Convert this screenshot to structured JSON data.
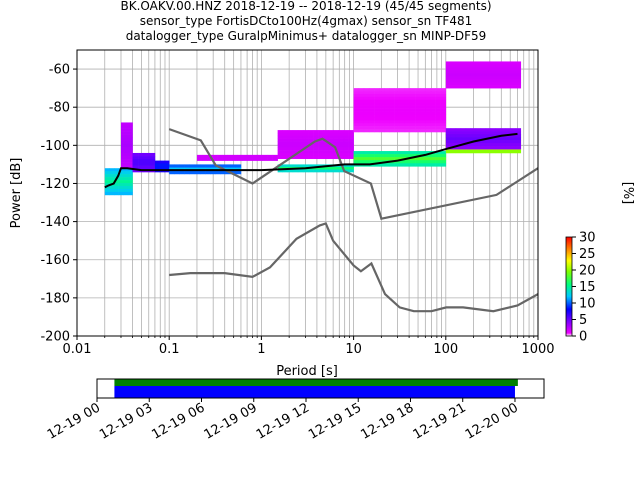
{
  "title_lines": [
    "BK.OAKV.00.HNZ   2018-12-19 -- 2018-12-19  (45/45 segments)",
    "sensor_type FortisDCto100Hz(4gmax) sensor_sn TF481",
    "datalogger_type GuralpMinimus+ datalogger_sn MINP-DF59"
  ],
  "chart_data": [
    {
      "type": "heatmap",
      "subtype": "probabilistic power spectral density",
      "xlabel": "Period [s]",
      "ylabel": "Power [dB]",
      "xscale": "log",
      "xlim": [
        0.01,
        1000
      ],
      "ylim": [
        -200,
        -50
      ],
      "grid": true,
      "x_tick_labels": [
        "0.01",
        "0.1",
        "1",
        "10",
        "100",
        "1000"
      ],
      "y_tick_labels": [
        "-200",
        "-180",
        "-160",
        "-140",
        "-120",
        "-100",
        "-80",
        "-60"
      ],
      "mode_curve": {
        "color": "#000000",
        "x": [
          0.02,
          0.022,
          0.025,
          0.028,
          0.03,
          0.035,
          0.05,
          0.1,
          0.3,
          1,
          3,
          8,
          15,
          30,
          60,
          100,
          200,
          400,
          600
        ],
        "y": [
          -122,
          -121,
          -120,
          -116,
          -112,
          -112,
          -113,
          -113,
          -113,
          -113,
          -112,
          -110,
          -110,
          -108,
          -105,
          -102,
          -98,
          -95,
          -94
        ]
      },
      "noise_models": [
        {
          "color": "#666666",
          "x": [
            0.1,
            0.17,
            0.4,
            0.8,
            1.24,
            2.4,
            4.3,
            5,
            6,
            10,
            12,
            15.6,
            21.9,
            31.6,
            45,
            70,
            101,
            154,
            328,
            600,
            1000
          ],
          "y": [
            -168,
            -167,
            -167,
            -169,
            -164,
            -149,
            -142,
            -141,
            -150,
            -163,
            -166,
            -162,
            -178,
            -185,
            -187,
            -187,
            -185,
            -185,
            -187,
            -184,
            -178
          ]
        },
        {
          "color": "#666666",
          "x": [
            0.1,
            0.22,
            0.32,
            0.8,
            3.8,
            4.6,
            6.3,
            7.9,
            15.4,
            20,
            354.8,
            1000
          ],
          "y": [
            -91.5,
            -97.4,
            -110.5,
            -120,
            -98,
            -96.5,
            -101,
            -113.5,
            -120,
            -138.5,
            -126,
            -112
          ]
        }
      ],
      "density": [
        {
          "x": [
            0.02,
            0.04
          ],
          "y": [
            -126,
            -112
          ],
          "level": 15
        },
        {
          "x": [
            0.03,
            0.04
          ],
          "y": [
            -112,
            -88
          ],
          "level": 3
        },
        {
          "x": [
            0.04,
            0.07
          ],
          "y": [
            -114,
            -104
          ],
          "level": 6
        },
        {
          "x": [
            0.07,
            0.1
          ],
          "y": [
            -114,
            -108
          ],
          "level": 9
        },
        {
          "x": [
            0.1,
            0.6
          ],
          "y": [
            -115,
            -110
          ],
          "level": 12
        },
        {
          "x": [
            0.2,
            1.5
          ],
          "y": [
            -108,
            -105
          ],
          "level": 2
        },
        {
          "x": [
            1.5,
            10
          ],
          "y": [
            -114,
            -110
          ],
          "level": 16
        },
        {
          "x": [
            1.5,
            10
          ],
          "y": [
            -107,
            -92
          ],
          "level": 2
        },
        {
          "x": [
            10,
            100
          ],
          "y": [
            -111,
            -103
          ],
          "level": 18
        },
        {
          "x": [
            10,
            100
          ],
          "y": [
            -93,
            -70
          ],
          "level": 1
        },
        {
          "x": [
            100,
            650
          ],
          "y": [
            -104,
            -94
          ],
          "level": 25
        },
        {
          "x": [
            100,
            650
          ],
          "y": [
            -102,
            -91
          ],
          "level": 5
        },
        {
          "x": [
            100,
            650
          ],
          "y": [
            -70,
            -56
          ],
          "level": 2
        }
      ]
    },
    {
      "type": "colorbar",
      "label": "[%]",
      "range": [
        0,
        30
      ],
      "tick_labels": [
        "0",
        "5",
        "10",
        "15",
        "20",
        "25",
        "30"
      ]
    },
    {
      "type": "timeline",
      "xlim": [
        "2018-12-19 00:00",
        "2018-12-20 01:40"
      ],
      "tick_labels": [
        "12-19 00",
        "12-19 03",
        "12-19 06",
        "12-19 09",
        "12-19 12",
        "12-19 15",
        "12-19 18",
        "12-19 21",
        "12-20 00"
      ],
      "coverage": [
        {
          "color": "#008000",
          "start": "2018-12-19 01:00",
          "end": "2018-12-20 00:10"
        },
        {
          "color": "#0000ff",
          "start": "2018-12-19 01:00",
          "end": "2018-12-20 00:00"
        }
      ]
    }
  ]
}
